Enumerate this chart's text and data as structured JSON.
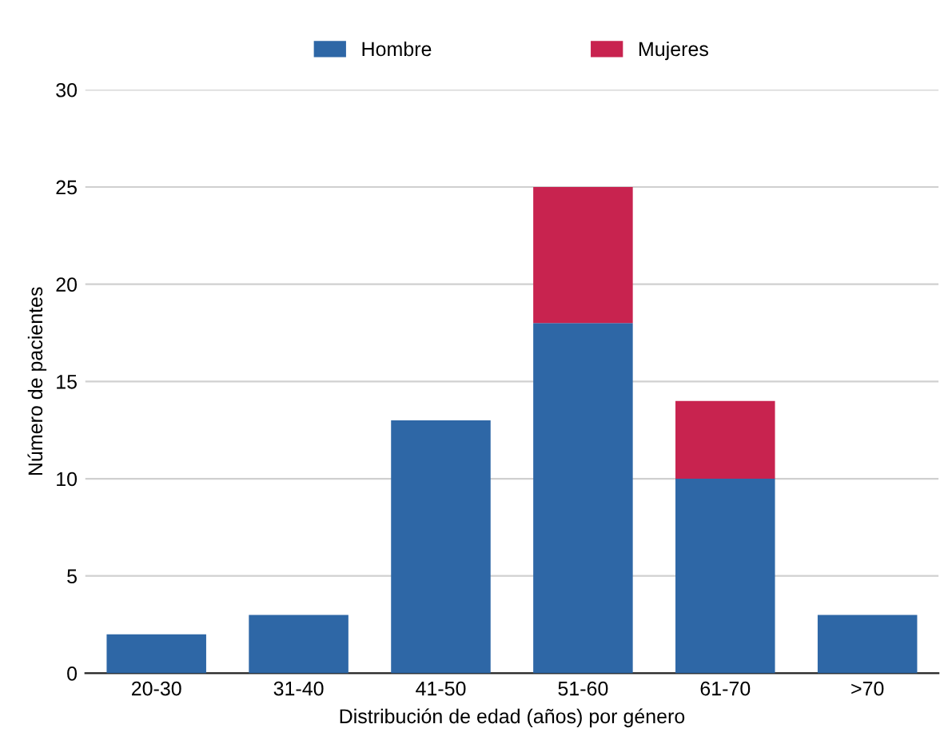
{
  "chart_data": {
    "type": "bar",
    "stacked": true,
    "xlabel": "Distribución de edad (años) por género",
    "ylabel": "Número de pacientes",
    "categories": [
      "20-30",
      "31-40",
      "41-50",
      "51-60",
      "61-70",
      ">70"
    ],
    "series": [
      {
        "name": "Hombre",
        "color": "#2e67a6",
        "values": [
          2,
          3,
          13,
          18,
          10,
          3
        ]
      },
      {
        "name": "Mujeres",
        "color": "#c8234f",
        "values": [
          0,
          0,
          0,
          7,
          4,
          0
        ]
      }
    ],
    "ylim": [
      0,
      30
    ],
    "yticks": [
      0,
      5,
      10,
      15,
      20,
      25,
      30
    ],
    "grid": "y",
    "legend": "top"
  }
}
